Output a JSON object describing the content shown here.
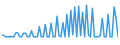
{
  "chart_data": {
    "type": "line",
    "color": "#3a9ce6",
    "tick_labels": false,
    "grid": false,
    "x": [
      0,
      1,
      2,
      3,
      4,
      5,
      6,
      7,
      8,
      9,
      10,
      11,
      12,
      13,
      14,
      15,
      16,
      17,
      18,
      19,
      20,
      21,
      22,
      23,
      24,
      25,
      26,
      27,
      28,
      29,
      30,
      31,
      32,
      33,
      34,
      35,
      36,
      37,
      38,
      39,
      40,
      41,
      42,
      43,
      44,
      45,
      46,
      47,
      48,
      49,
      50,
      51,
      52,
      53,
      54,
      55,
      56,
      57,
      58,
      59
    ],
    "values": [
      20,
      18,
      15,
      15,
      16,
      15,
      15,
      25,
      25,
      15,
      15,
      24,
      24,
      15,
      15,
      30,
      15,
      15,
      15,
      40,
      15,
      15,
      45,
      15,
      15,
      48,
      15,
      15,
      65,
      18,
      15,
      50,
      15,
      70,
      15,
      80,
      20,
      88,
      15,
      90,
      18,
      75,
      15,
      92,
      20,
      15,
      85,
      15,
      15,
      15,
      18,
      60,
      15,
      15,
      70,
      15,
      15,
      88,
      60,
      15
    ],
    "xlim": [
      0,
      59
    ],
    "ylim": [
      0,
      100
    ]
  }
}
